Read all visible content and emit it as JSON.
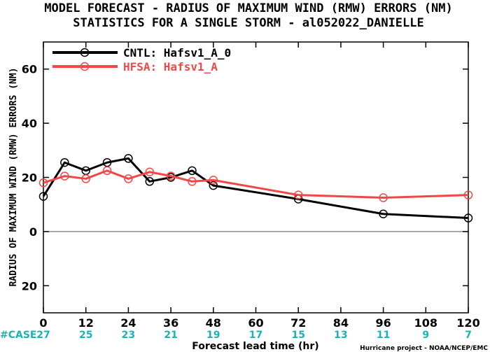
{
  "chart_data": {
    "type": "line",
    "title": "MODEL FORECAST - RADIUS OF MAXIMUM WIND (RMW) ERRORS (NM)",
    "subtitle": "STATISTICS FOR A SINGLE STORM - al052022_DANIELLE",
    "xlabel": "Forecast lead time (hr)",
    "ylabel": "RADIUS OF MAXIMUM WIND (RMW) ERRORS (NM)",
    "xlim": [
      0,
      120
    ],
    "ylim": [
      -30,
      70
    ],
    "xticks": [
      0,
      12,
      24,
      36,
      48,
      60,
      72,
      84,
      96,
      108,
      120
    ],
    "yticks": [
      -20,
      0,
      20,
      40,
      60
    ],
    "ytick_labels": [
      "20",
      "0",
      "20",
      "40",
      "60"
    ],
    "zero_line": true,
    "legend_position": "top-left",
    "series": [
      {
        "name": "CNTL: Hafsv1_A_0",
        "color": "#000000",
        "x": [
          0,
          6,
          12,
          18,
          24,
          30,
          36,
          42,
          48,
          72,
          96,
          120
        ],
        "y": [
          13,
          25.5,
          22.5,
          25.5,
          27,
          18.5,
          20,
          22.5,
          17,
          12,
          6.5,
          5
        ]
      },
      {
        "name": "HFSA: Hafsv1_A",
        "color": "#f04848",
        "x": [
          0,
          6,
          12,
          18,
          24,
          30,
          36,
          42,
          48,
          72,
          96,
          120
        ],
        "y": [
          18,
          20.5,
          19.5,
          22.5,
          19.5,
          22,
          20.5,
          18.5,
          19,
          13.5,
          12.5,
          13.5
        ]
      }
    ],
    "cases_label": "#CASE",
    "cases_x": [
      0,
      12,
      24,
      36,
      48,
      60,
      72,
      84,
      96,
      108,
      120
    ],
    "cases": [
      "27",
      "25",
      "23",
      "21",
      "19",
      "17",
      "15",
      "13",
      "11",
      "9",
      "7"
    ],
    "credit": "Hurricane project - NOAA/NCEP/EMC"
  }
}
